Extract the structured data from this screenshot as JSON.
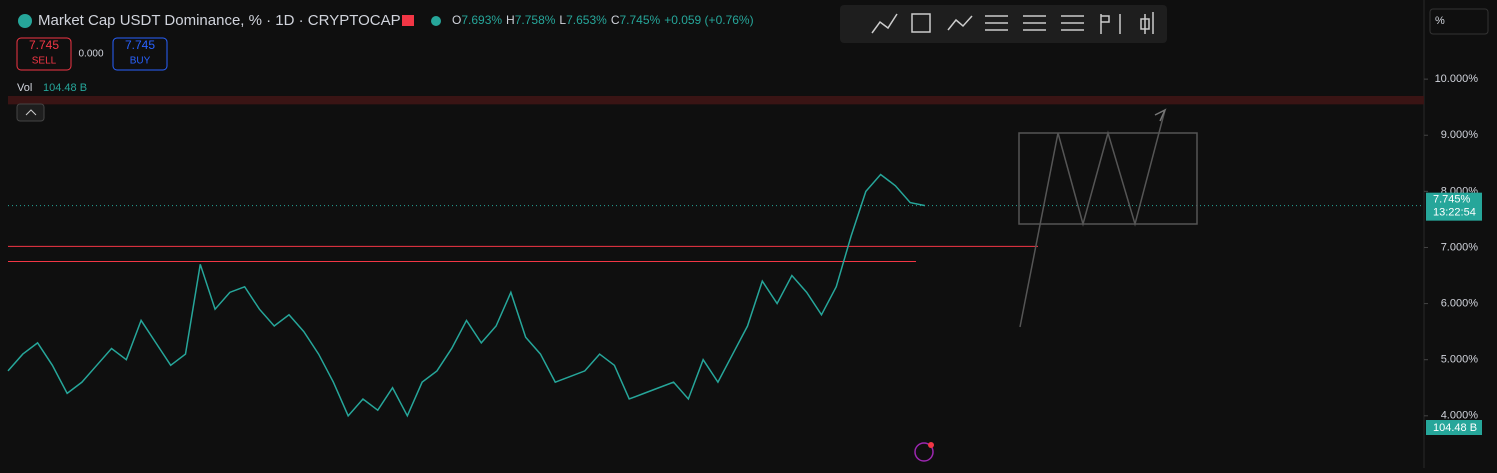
{
  "header": {
    "title": "Market Cap USDT Dominance, % · 1D · CRYPTOCAP",
    "ohlc": [
      {
        "key": "O",
        "value": "7.693%"
      },
      {
        "key": "H",
        "value": "7.758%"
      },
      {
        "key": "L",
        "value": "7.653%"
      },
      {
        "key": "C",
        "value": "7.745%"
      }
    ],
    "change": "+0.059 (+0.76%)"
  },
  "trade": {
    "sell_price": "7.745",
    "sell_label": "SELL",
    "spread": "0.000",
    "buy_price": "7.745",
    "buy_label": "BUY"
  },
  "volume": {
    "label": "Vol",
    "value": "104.48 B"
  },
  "scale": {
    "unit": "%",
    "price_label": "7.745%",
    "countdown": "13:22:54",
    "volume_label": "104.48 B"
  },
  "chart_data": {
    "type": "line",
    "color": "#26a69a",
    "values": [
      4.8,
      5.1,
      5.3,
      4.9,
      4.4,
      4.6,
      4.9,
      5.2,
      5.0,
      5.7,
      5.3,
      4.9,
      5.1,
      6.7,
      5.9,
      6.2,
      6.3,
      5.9,
      5.6,
      5.8,
      5.5,
      5.1,
      4.6,
      4.0,
      4.3,
      4.1,
      4.5,
      4.0,
      4.6,
      4.8,
      5.2,
      5.7,
      5.3,
      5.6,
      6.2,
      5.4,
      5.1,
      4.6,
      4.7,
      4.8,
      5.1,
      4.9,
      4.3,
      4.4,
      4.5,
      4.6,
      4.3,
      5.0,
      4.6,
      5.1,
      5.6,
      6.4,
      6.0,
      6.5,
      6.2,
      5.8,
      6.3,
      7.2,
      8.0,
      8.3,
      8.1,
      7.8,
      7.745
    ],
    "ylim": [
      3.07,
      11.41
    ],
    "yticks": [
      {
        "value": 4,
        "label": "4.000%"
      },
      {
        "value": 5,
        "label": "5.000%"
      },
      {
        "value": 6,
        "label": "6.000%"
      },
      {
        "value": 7,
        "label": "7.000%"
      },
      {
        "value": 8,
        "label": "8.000%"
      },
      {
        "value": 9,
        "label": "9.000%"
      },
      {
        "value": 10,
        "label": "10.000%"
      }
    ],
    "levels": [
      7.02,
      6.75
    ],
    "zone": [
      9.55,
      9.7
    ]
  }
}
